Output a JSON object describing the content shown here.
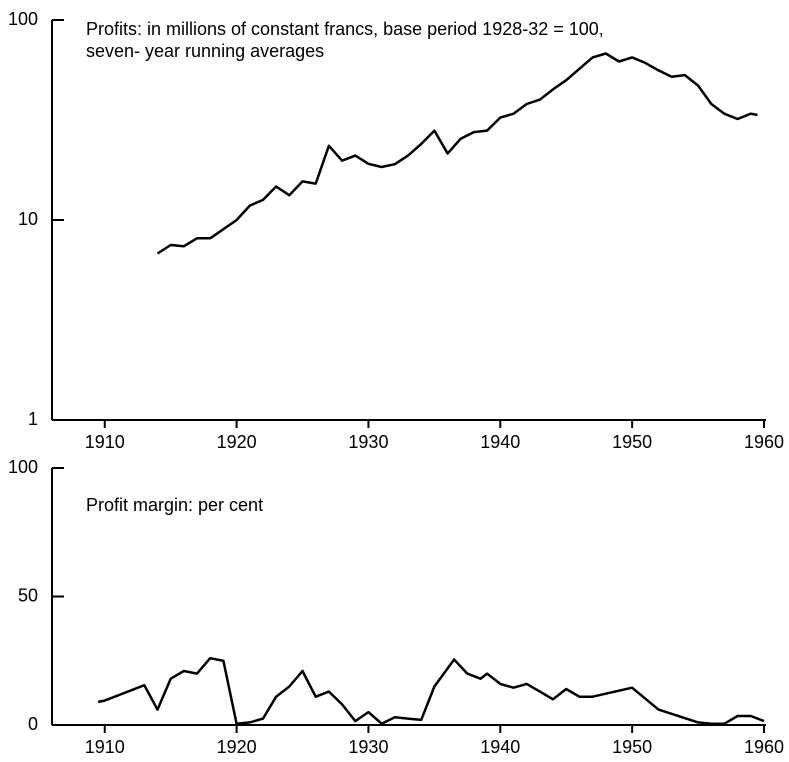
{
  "chart_data": [
    {
      "type": "line",
      "title": [
        "Profits: in millions of constant francs, base period 1928-32 = 100,",
        "seven- year running averages"
      ],
      "log_y": true,
      "color": "#000000",
      "x": [
        1914,
        1915,
        1916,
        1917,
        1918,
        1919,
        1920,
        1921,
        1922,
        1923,
        1924,
        1925,
        1926,
        1927,
        1928,
        1929,
        1930,
        1931,
        1932,
        1933,
        1934,
        1935,
        1936,
        1937,
        1938,
        1939,
        1940,
        1941,
        1942,
        1943,
        1944,
        1945,
        1946,
        1947,
        1948,
        1949,
        1950,
        1951,
        1952,
        1953,
        1954,
        1955,
        1956,
        1957,
        1958,
        1959,
        1959.5
      ],
      "values": [
        6.8,
        7.5,
        7.4,
        8.1,
        8.1,
        9.0,
        10.0,
        11.8,
        12.6,
        14.7,
        13.3,
        15.6,
        15.2,
        23.5,
        19.8,
        21.0,
        19.1,
        18.4,
        19.0,
        21,
        24,
        28,
        21.5,
        25.5,
        27.5,
        28,
        32.5,
        34,
        38,
        40,
        45,
        50,
        57,
        65,
        68,
        62,
        65,
        61,
        56,
        52,
        53,
        47,
        38,
        34,
        32,
        34,
        33.5
      ],
      "xlim": [
        1906,
        1960
      ],
      "xticks": [
        1910,
        1920,
        1930,
        1940,
        1950,
        1960
      ],
      "ylim": [
        1,
        100
      ],
      "yticks": [
        1,
        10,
        100
      ]
    },
    {
      "type": "line",
      "title": [
        "Profit margin: per cent"
      ],
      "log_y": false,
      "color": "#000000",
      "x": [
        1909.5,
        1910,
        1913,
        1914,
        1915,
        1916,
        1917,
        1918,
        1919,
        1920,
        1921,
        1922,
        1923,
        1924,
        1925,
        1926,
        1927,
        1928,
        1929,
        1930,
        1931,
        1932,
        1933,
        1934,
        1935,
        1936.5,
        1937.5,
        1938.5,
        1939,
        1940,
        1941,
        1942,
        1943,
        1944,
        1945,
        1946,
        1947,
        1950,
        1952,
        1955,
        1956,
        1957,
        1958,
        1959,
        1960
      ],
      "values": [
        9,
        9.5,
        15.5,
        6,
        18,
        21,
        20,
        26,
        25,
        0.5,
        1,
        2.5,
        11,
        15,
        21,
        11,
        13,
        8,
        1.5,
        5,
        0.5,
        3,
        2.5,
        2,
        15,
        25.5,
        20,
        18,
        20,
        16,
        14.5,
        16,
        13,
        10,
        14,
        11,
        11,
        14.5,
        6,
        1,
        0.5,
        0.5,
        3.5,
        3.5,
        1.5
      ],
      "xlim": [
        1906,
        1960
      ],
      "xticks": [
        1910,
        1920,
        1930,
        1940,
        1950,
        1960
      ],
      "ylim": [
        0,
        100
      ],
      "yticks": [
        0,
        50,
        100
      ]
    }
  ]
}
